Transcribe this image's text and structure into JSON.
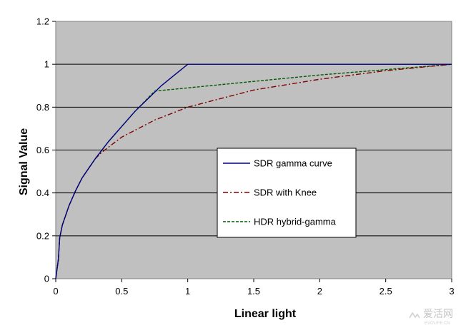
{
  "chart_data": {
    "type": "line",
    "title": "",
    "xlabel": "Linear light",
    "ylabel": "Signal Value",
    "xlim": [
      0,
      3
    ],
    "ylim": [
      0,
      1.2
    ],
    "x_ticks": [
      "0",
      "0.5",
      "1",
      "1.5",
      "2",
      "2.5",
      "3"
    ],
    "y_ticks": [
      "0",
      "0.2",
      "0.4",
      "0.6",
      "0.8",
      "1",
      "1.2"
    ],
    "grid": "horizontal",
    "plot_background": "#c0c0c0",
    "legend_position": "center-right",
    "series": [
      {
        "name": "SDR gamma curve",
        "color": "#000080",
        "style": "solid",
        "points": [
          [
            0,
            0
          ],
          [
            0.01,
            0.045
          ],
          [
            0.02,
            0.09
          ],
          [
            0.03,
            0.19
          ],
          [
            0.05,
            0.25
          ],
          [
            0.1,
            0.34
          ],
          [
            0.15,
            0.41
          ],
          [
            0.2,
            0.47
          ],
          [
            0.3,
            0.56
          ],
          [
            0.4,
            0.64
          ],
          [
            0.5,
            0.71
          ],
          [
            0.6,
            0.78
          ],
          [
            0.7,
            0.84
          ],
          [
            0.8,
            0.9
          ],
          [
            0.9,
            0.95
          ],
          [
            1.0,
            1.0
          ],
          [
            1.5,
            1.0
          ],
          [
            2.0,
            1.0
          ],
          [
            2.5,
            1.0
          ],
          [
            3.0,
            1.0
          ]
        ]
      },
      {
        "name": "SDR with Knee",
        "color": "#800000",
        "style": "dash-dot",
        "points": [
          [
            0,
            0
          ],
          [
            0.01,
            0.045
          ],
          [
            0.02,
            0.09
          ],
          [
            0.03,
            0.19
          ],
          [
            0.05,
            0.25
          ],
          [
            0.1,
            0.34
          ],
          [
            0.15,
            0.41
          ],
          [
            0.2,
            0.47
          ],
          [
            0.3,
            0.56
          ],
          [
            0.35,
            0.59
          ],
          [
            0.5,
            0.66
          ],
          [
            0.75,
            0.74
          ],
          [
            1.0,
            0.8
          ],
          [
            1.5,
            0.88
          ],
          [
            2.0,
            0.93
          ],
          [
            2.5,
            0.97
          ],
          [
            3.0,
            1.0
          ]
        ]
      },
      {
        "name": "HDR hybrid-gamma",
        "color": "#005a00",
        "style": "dashed",
        "points": [
          [
            0,
            0
          ],
          [
            0.01,
            0.045
          ],
          [
            0.02,
            0.09
          ],
          [
            0.03,
            0.19
          ],
          [
            0.05,
            0.25
          ],
          [
            0.1,
            0.34
          ],
          [
            0.15,
            0.41
          ],
          [
            0.2,
            0.47
          ],
          [
            0.3,
            0.56
          ],
          [
            0.4,
            0.64
          ],
          [
            0.5,
            0.71
          ],
          [
            0.6,
            0.78
          ],
          [
            0.75,
            0.875
          ],
          [
            1.0,
            0.89
          ],
          [
            1.5,
            0.92
          ],
          [
            2.0,
            0.95
          ],
          [
            2.5,
            0.975
          ],
          [
            3.0,
            1.0
          ]
        ]
      }
    ]
  },
  "watermark": {
    "text": "爱活网",
    "sub": "EVOLIFE.CN"
  }
}
